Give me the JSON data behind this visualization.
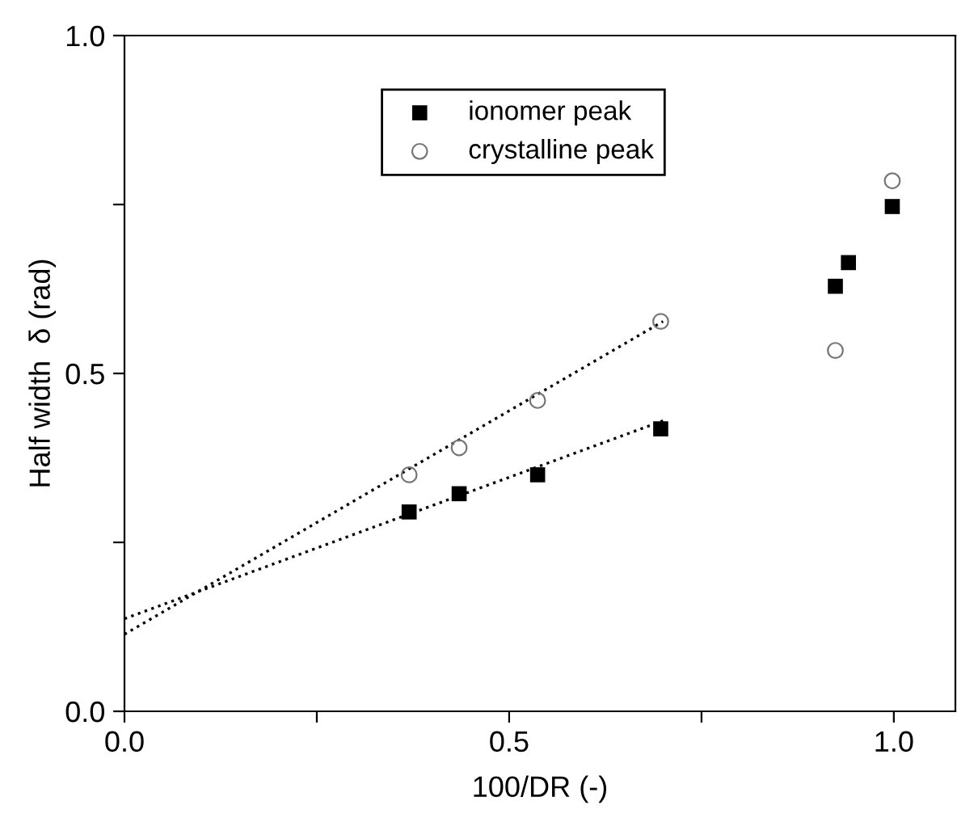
{
  "chart_data": {
    "type": "scatter",
    "xlabel": "100/DR (-)",
    "ylabel": "Half width  δ (rad)",
    "xlim": [
      0,
      1.08
    ],
    "xticks": [
      {
        "value": 0,
        "label": "0.0"
      },
      {
        "value": 0.25,
        "label": null
      },
      {
        "value": 0.5,
        "label": "0.5"
      },
      {
        "value": 0.75,
        "label": null
      },
      {
        "value": 1.0,
        "label": "1.0"
      }
    ],
    "ylim": [
      0,
      1.0
    ],
    "yticks": [
      {
        "value": 0,
        "label": "0.0"
      },
      {
        "value": 0.25,
        "label": null
      },
      {
        "value": 0.5,
        "label": "0.5"
      },
      {
        "value": 0.75,
        "label": null
      },
      {
        "value": 1.0,
        "label": "1.0"
      }
    ],
    "grid": false,
    "legend": "top",
    "series": [
      {
        "name": "ionomer peak",
        "color": "#000000",
        "marker": "square",
        "x": [
          0.37,
          0.435,
          0.537,
          0.697,
          0.924,
          0.941,
          0.998
        ],
        "values": [
          0.295,
          0.322,
          0.35,
          0.418,
          0.629,
          0.664,
          0.747
        ]
      },
      {
        "name": "crystalline peak",
        "color": "#777777",
        "marker": "circle",
        "x": [
          0.37,
          0.435,
          0.537,
          0.697,
          0.924,
          0.998
        ],
        "values": [
          0.35,
          0.39,
          0.46,
          0.577,
          0.534,
          0.785
        ]
      },
      {
        "type": "line",
        "color": "#000000",
        "line_style": "dotted",
        "marker": "none",
        "x": [
          0,
          0.7
        ],
        "values": [
          0.137,
          0.43
        ]
      },
      {
        "type": "line",
        "color": "#000000",
        "line_style": "dotted",
        "marker": "none",
        "x": [
          0,
          0.7
        ],
        "values": [
          0.114,
          0.577
        ]
      }
    ]
  }
}
